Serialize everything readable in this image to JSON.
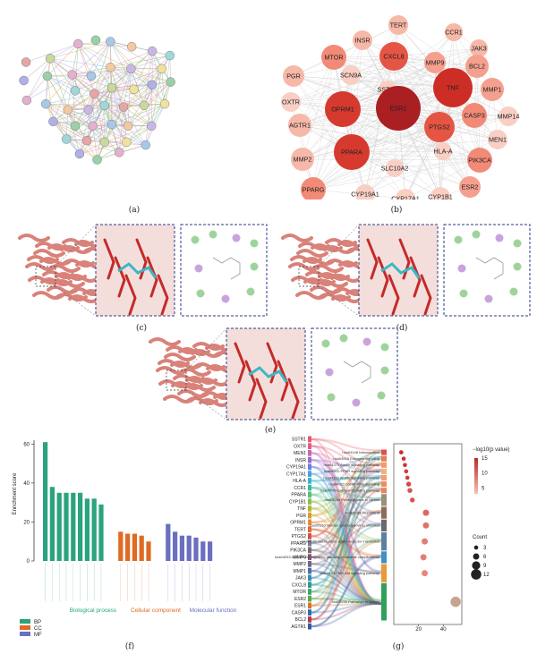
{
  "captions": {
    "a": "(a)",
    "b": "(b)",
    "c": "(c)",
    "d": "(d)",
    "e": "(e)",
    "f": "(f)",
    "g": "(g)"
  },
  "panel_b": {
    "nodes": [
      "TERT",
      "CCR1",
      "INSR",
      "JAK3",
      "MTOR",
      "CXCL8",
      "MMP9",
      "BCL2",
      "PGR",
      "SCN9A",
      "SSTR1",
      "TNF",
      "MMP1",
      "OXTR",
      "OPRM1",
      "ESR1",
      "CASP3",
      "MMP14",
      "AGTR1",
      "PTGS2",
      "MEN1",
      "MMP2",
      "HLA-A",
      "PIK3CA",
      "PPARA",
      "SLC10A2",
      "ESR2",
      "PPARG",
      "CYP19A1",
      "CYP17A1",
      "CYP1B1"
    ]
  },
  "panel_f": {
    "ylabel": "Enrichment score",
    "yticks": [
      "0",
      "20",
      "40",
      "60"
    ],
    "group_labels": [
      "Biological process",
      "Cellular component",
      "Molecular function"
    ],
    "legend": [
      {
        "key": "BP",
        "color": "#2aa37f"
      },
      {
        "key": "CC",
        "color": "#e06a24"
      },
      {
        "key": "MF",
        "color": "#6a6fbf"
      }
    ]
  },
  "chart_data": [
    {
      "type": "bar",
      "title": "",
      "xlabel": "",
      "ylabel": "Enrichment score",
      "ylim": [
        0,
        62
      ],
      "grid": false,
      "series": [
        {
          "name": "BP",
          "values": [
            61,
            38,
            35,
            35,
            35,
            35,
            32,
            32,
            29
          ]
        },
        {
          "name": "CC",
          "values": [
            15,
            14,
            14,
            13,
            10
          ]
        },
        {
          "name": "MF",
          "values": [
            19,
            15,
            13,
            13,
            12,
            10,
            10
          ]
        }
      ]
    },
    {
      "type": "scatter",
      "title": "",
      "xlabel": "Gene.ratio",
      "ylabel": "",
      "xlim": [
        0,
        55
      ],
      "xticks": [
        20,
        40
      ],
      "legend_color_title": "−log10(p value)",
      "legend_color_ticks": [
        5,
        10,
        15
      ],
      "legend_size_title": "Count",
      "legend_size_values": [
        3,
        6,
        9,
        12
      ],
      "legend": "right",
      "points": [
        {
          "x": 6,
          "pvalue": 16,
          "count": 3
        },
        {
          "x": 8,
          "pvalue": 15,
          "count": 3
        },
        {
          "x": 9,
          "pvalue": 15,
          "count": 3
        },
        {
          "x": 10,
          "pvalue": 14,
          "count": 3
        },
        {
          "x": 11,
          "pvalue": 14,
          "count": 3
        },
        {
          "x": 12,
          "pvalue": 13,
          "count": 4
        },
        {
          "x": 13,
          "pvalue": 12,
          "count": 4
        },
        {
          "x": 15,
          "pvalue": 12,
          "count": 4
        },
        {
          "x": 26,
          "pvalue": 10,
          "count": 6
        },
        {
          "x": 26,
          "pvalue": 9,
          "count": 6
        },
        {
          "x": 25,
          "pvalue": 8,
          "count": 6
        },
        {
          "x": 24,
          "pvalue": 8,
          "count": 6
        },
        {
          "x": 25,
          "pvalue": 7,
          "count": 6
        },
        {
          "x": 50,
          "pvalue": 4,
          "count": 12
        }
      ]
    }
  ],
  "panel_g": {
    "genes": [
      "SSTR1",
      "OXTR",
      "MEN1",
      "INSR",
      "CYP19A1",
      "CYP17A1",
      "HLA-A",
      "CCR1",
      "PPARA",
      "CYP1B1",
      "TNF",
      "PGR",
      "OPRM1",
      "TERT",
      "PTGS2",
      "PPARG",
      "PIK3CA",
      "MMP9",
      "MMP2",
      "MMP1",
      "JAK3",
      "CXCL8",
      "MTOR",
      "ESR2",
      "ESR1",
      "CASP3",
      "BCL2",
      "AGTR1"
    ],
    "gene_colors": [
      "#e85a6a",
      "#e35a86",
      "#c86ab0",
      "#9a6bd0",
      "#6c7fdc",
      "#4aa0dc",
      "#39b5c7",
      "#3bbba3",
      "#5bbf79",
      "#8bbf4f",
      "#b8b43a",
      "#d6a233",
      "#e58b3a",
      "#e06a3a",
      "#d8524c",
      "#7a7a9a",
      "#6e6e6e",
      "#8a5a7a",
      "#6a6a8a",
      "#4b6fa8",
      "#3c8bb4",
      "#2c9a9a",
      "#3fa36b",
      "#5aa84a",
      "#d07a2a",
      "#2a6fb0",
      "#b03a4a",
      "#3a5aa0"
    ],
    "pathways": [
      "hsa04148 Inflammation",
      "hsa04915 Estrogen signaling",
      "hsa04371 Apelin signaling pathway",
      "hsa04920 PPAR signaling pathway",
      "hsa04152 AMPK signaling pathway",
      "hsa04022 cGMP-PKG signaling",
      "hsa04020 Calcium signaling pathway",
      "hsa05205 Proteoglycans in cancer",
      "hsa05161 Hepatitis B",
      "hsa05163 Human cytomegalovirus infection",
      "hsa04080 Neuroactive ligand-receptor interaction",
      "hsa04933 AGE-RAGE signaling pathway in diabetic complications",
      "hsa04151 PI3K-Akt signaling pathway",
      "hsa05200 Pathways in cancer"
    ],
    "pathway_colors": [
      "#e34d4d",
      "#ea7b53",
      "#f19a6c",
      "#f4b37f",
      "#f4a06e",
      "#ef8d5e",
      "#e88460",
      "#9b8f7a",
      "#8f6b5a",
      "#6c6a6a",
      "#5f7f9f",
      "#3f8fc8",
      "#e69a3a",
      "#2fa05a"
    ]
  }
}
